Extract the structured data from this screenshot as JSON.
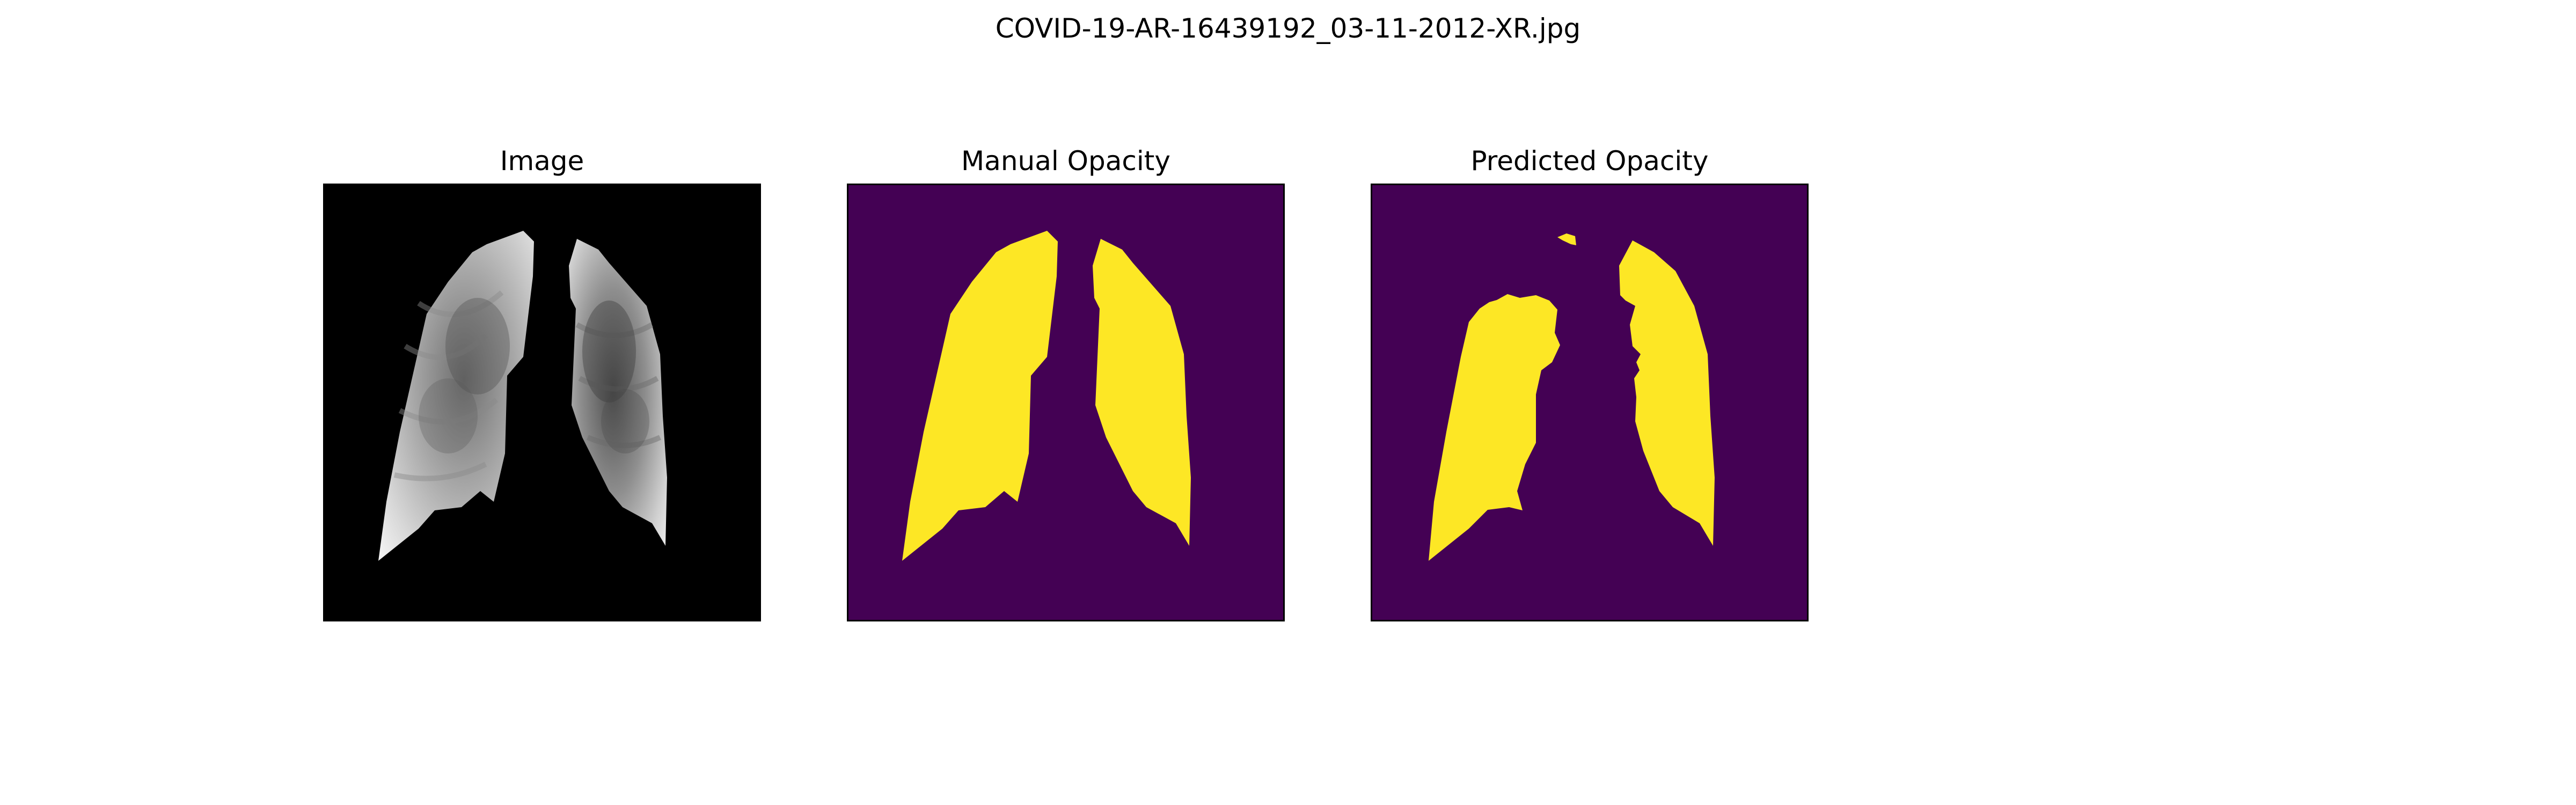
{
  "figure": {
    "title": "COVID-19-AR-16439192_03-11-2012-XR.jpg",
    "panels": [
      {
        "title": "Image"
      },
      {
        "title": "Manual Opacity"
      },
      {
        "title": "Predicted Opacity"
      }
    ]
  },
  "colors": {
    "background_dark": "#000000",
    "mask_background": "#440154",
    "mask_foreground": "#fde725"
  }
}
